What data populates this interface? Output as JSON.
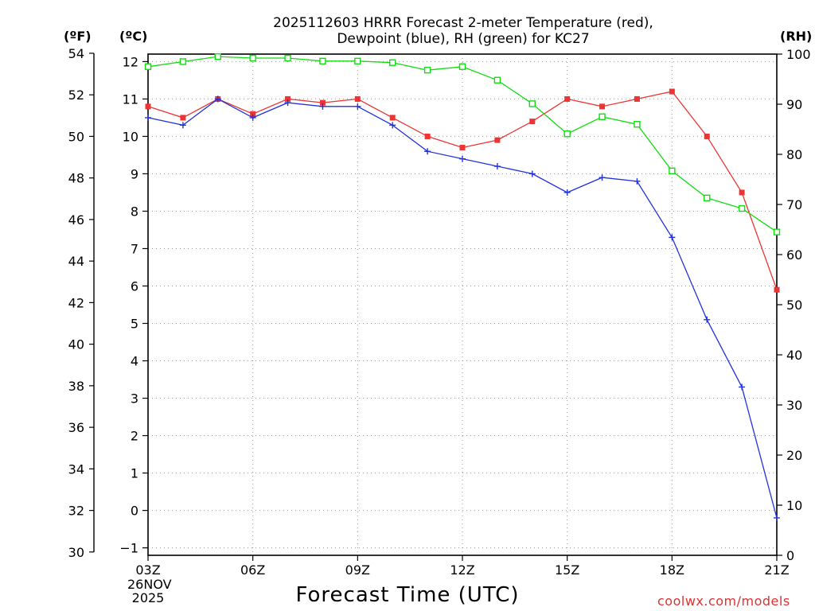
{
  "header": {
    "title_line1": "2025112603 HRRR Forecast 2-meter Temperature (red),",
    "title_line2": "Dewpoint (blue), RH (green) for KC27"
  },
  "units": {
    "left_f": "(ºF)",
    "left_c": "(ºC)",
    "right_rh": "(RH)"
  },
  "footer": {
    "date_day": "26NOV",
    "date_year": "2025",
    "xlabel": "Forecast Time (UTC)",
    "credit": "coolwx.com/models"
  },
  "colors": {
    "temperature": "#ee3333",
    "dewpoint": "#2233dd",
    "rh": "#11dd11",
    "grid": "#999999"
  },
  "chart_data": {
    "type": "line",
    "title": "2025112603 HRRR Forecast 2-meter Temperature (red), Dewpoint (blue), RH (green) for KC27",
    "xlabel": "Forecast Time (UTC)",
    "x": [
      3,
      4,
      5,
      6,
      7,
      8,
      9,
      10,
      11,
      12,
      13,
      14,
      15,
      16,
      17,
      18,
      19,
      20,
      21
    ],
    "xlim": [
      3,
      21
    ],
    "xticks": [
      {
        "value": 3,
        "label": "03Z"
      },
      {
        "value": 6,
        "label": "06Z"
      },
      {
        "value": 9,
        "label": "09Z"
      },
      {
        "value": 12,
        "label": "12Z"
      },
      {
        "value": 15,
        "label": "15Z"
      },
      {
        "value": 18,
        "label": "18Z"
      },
      {
        "value": 21,
        "label": "21Z"
      }
    ],
    "y_celsius": {
      "label": "(ºC)",
      "ylim": [
        -1.2,
        12.2
      ],
      "ticks": [
        -1,
        0,
        1,
        2,
        3,
        4,
        5,
        6,
        7,
        8,
        9,
        10,
        11,
        12
      ]
    },
    "y_fahrenheit": {
      "label": "(ºF)",
      "ticks": [
        30,
        32,
        34,
        36,
        38,
        40,
        42,
        44,
        46,
        48,
        50,
        52,
        54
      ]
    },
    "y_rh": {
      "label": "(RH)",
      "ylim": [
        0,
        100
      ],
      "ticks": [
        0,
        10,
        20,
        30,
        40,
        50,
        60,
        70,
        80,
        90,
        100
      ]
    },
    "grid": true,
    "series": [
      {
        "name": "Temperature",
        "axis": "celsius",
        "marker": "filled-square",
        "values": [
          10.8,
          10.5,
          11.0,
          10.6,
          11.0,
          10.9,
          11.0,
          10.5,
          10.0,
          9.7,
          9.9,
          10.4,
          11.0,
          10.8,
          11.0,
          11.2,
          10.0,
          8.5,
          5.9
        ]
      },
      {
        "name": "Dewpoint",
        "axis": "celsius",
        "marker": "plus",
        "values": [
          10.5,
          10.3,
          11.0,
          10.5,
          10.9,
          10.8,
          10.8,
          10.3,
          9.6,
          9.4,
          9.2,
          9.0,
          8.5,
          8.9,
          8.8,
          7.3,
          5.1,
          3.3,
          -0.2
        ]
      },
      {
        "name": "RH",
        "axis": "rh",
        "marker": "open-square",
        "values": [
          97.5,
          98.5,
          99.5,
          99.2,
          99.2,
          98.6,
          98.6,
          98.3,
          96.8,
          97.5,
          94.8,
          90.1,
          84.1,
          87.5,
          86.0,
          76.7,
          71.3,
          69.2,
          64.5
        ]
      }
    ]
  }
}
